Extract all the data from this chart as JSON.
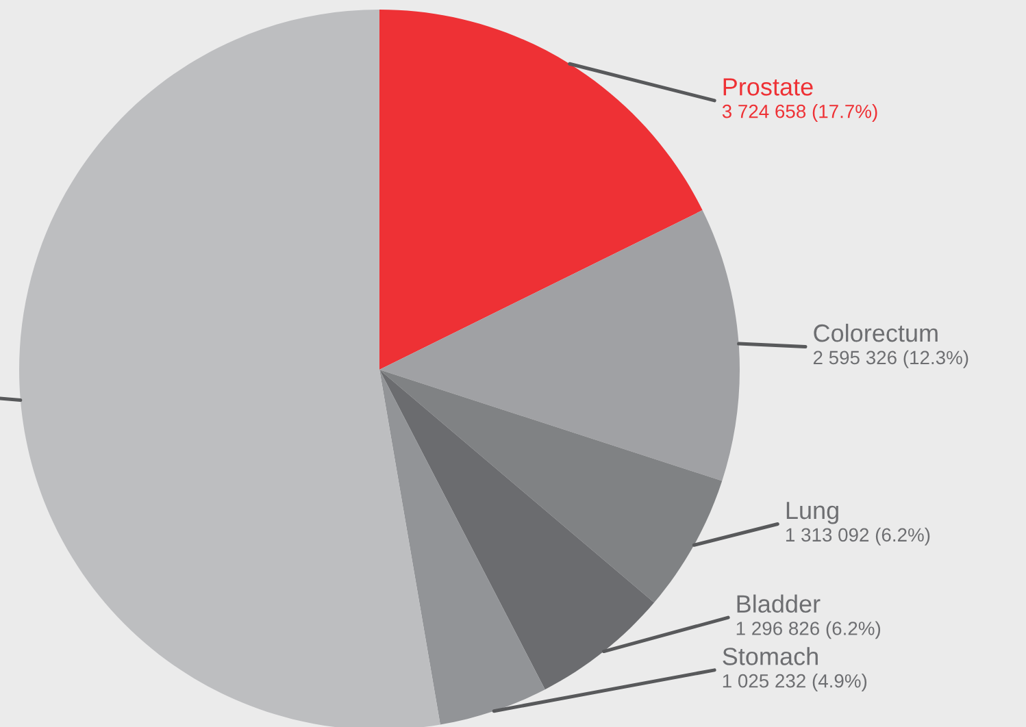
{
  "chart_data": {
    "type": "pie",
    "categories": [
      "Prostate",
      "Colorectum",
      "Lung",
      "Bladder",
      "Stomach",
      null
    ],
    "values": [
      17.7,
      12.3,
      6.2,
      6.2,
      4.9,
      52.7
    ],
    "colors": [
      "#ee3135",
      "#a0a1a4",
      "#808284",
      "#6b6c6f",
      "#929497",
      "#bdbec0"
    ],
    "value_labels": [
      "3 724 658 (17.7%)",
      "2 595 326 (12.3%)",
      "1 313 092 (6.2%)",
      "1 296 826 (6.2%)",
      "1 025 232 (4.9%)",
      null
    ],
    "legend": false
  }
}
